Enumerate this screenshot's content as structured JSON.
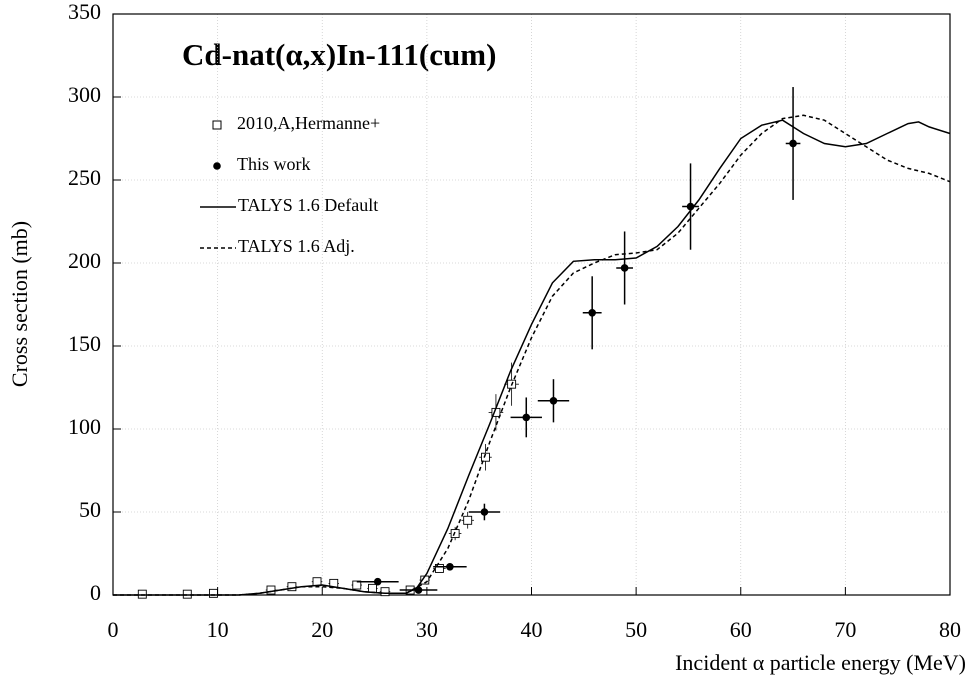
{
  "chart_data": {
    "type": "line",
    "title": "Cd-nat(α,x)In-111(cum)",
    "x_label": "Incident α particle energy (MeV)",
    "y_label": "Cross section (mb)",
    "xlim": [
      0,
      80
    ],
    "xticks": [
      0,
      10,
      20,
      30,
      40,
      50,
      60,
      70,
      80
    ],
    "ylim": [
      0,
      350
    ],
    "yticks": [
      0,
      50,
      100,
      150,
      200,
      250,
      300,
      350
    ],
    "grid": true,
    "legend": "upper left",
    "series": [
      {
        "name": "2010,A,Hermanne+",
        "kind": "scatter",
        "marker": "square-open",
        "color": "#000000",
        "x": [
          2.8,
          7.1,
          9.6,
          15.1,
          17.1,
          19.5,
          21.1,
          23.3,
          24.8,
          26.0,
          28.4,
          29.8,
          31.2,
          32.7,
          33.9,
          35.6,
          36.6,
          38.1
        ],
        "values": [
          0.5,
          0.5,
          1,
          3,
          5,
          8,
          7,
          6,
          4,
          2,
          3,
          9,
          16,
          37,
          45,
          83,
          110,
          127
        ],
        "errors": [
          0.2,
          0.2,
          0.3,
          0.5,
          0.8,
          1,
          1,
          1,
          0.8,
          0.5,
          0.6,
          2,
          2,
          4,
          5,
          8,
          11,
          13
        ],
        "xerr": [
          0.4,
          0.4,
          0.4,
          0.5,
          0.5,
          0.5,
          0.5,
          0.5,
          0.5,
          0.5,
          0.5,
          0.5,
          0.6,
          0.6,
          0.6,
          0.6,
          0.7,
          0.7
        ]
      },
      {
        "name": "This work",
        "kind": "scatter",
        "marker": "circle-filled",
        "color": "#000000",
        "x": [
          25.3,
          29.2,
          32.2,
          35.5,
          39.5,
          42.1,
          45.8,
          48.9,
          55.2,
          65.0
        ],
        "values": [
          8,
          3,
          17,
          50,
          107,
          117,
          170,
          197,
          234,
          272
        ],
        "errors": [
          1,
          0.5,
          2,
          5,
          12,
          13,
          22,
          22,
          26,
          34
        ],
        "xerr": [
          2.0,
          1.8,
          1.6,
          1.5,
          1.5,
          1.5,
          0.9,
          0.8,
          0.8,
          0.7
        ]
      },
      {
        "name": "TALYS 1.6 Default",
        "kind": "line",
        "dash": false,
        "color": "#000000",
        "x": [
          0,
          12,
          14,
          16,
          18,
          20,
          22,
          24,
          26,
          28,
          29,
          30,
          32,
          34,
          36,
          38,
          40,
          42,
          44,
          46,
          48,
          50,
          52,
          54,
          56,
          58,
          60,
          62,
          64,
          66,
          68,
          70,
          72,
          74,
          76,
          77,
          78,
          80
        ],
        "values": [
          0,
          0,
          1,
          3,
          5,
          6,
          4,
          2,
          1,
          1,
          4,
          13,
          40,
          72,
          103,
          135,
          163,
          188,
          201,
          202,
          202,
          203,
          210,
          222,
          238,
          257,
          275,
          283,
          286,
          278,
          272,
          270,
          272,
          278,
          284,
          285,
          282,
          278
        ]
      },
      {
        "name": "TALYS 1.6 Adj.",
        "kind": "line",
        "dash": true,
        "color": "#000000",
        "x": [
          0,
          12,
          14,
          16,
          18,
          20,
          22,
          24,
          26,
          28,
          30,
          32,
          34,
          36,
          38,
          40,
          42,
          44,
          46,
          48,
          50,
          52,
          54,
          56,
          58,
          60,
          62,
          64,
          66,
          68,
          70,
          72,
          74,
          76,
          78,
          80
        ],
        "values": [
          0,
          0,
          1,
          3,
          5,
          5,
          4,
          2,
          1,
          1,
          8,
          28,
          57,
          92,
          125,
          155,
          180,
          194,
          200,
          205,
          206,
          208,
          218,
          233,
          248,
          265,
          278,
          287,
          289,
          286,
          278,
          270,
          262,
          257,
          254,
          249
        ]
      }
    ]
  }
}
